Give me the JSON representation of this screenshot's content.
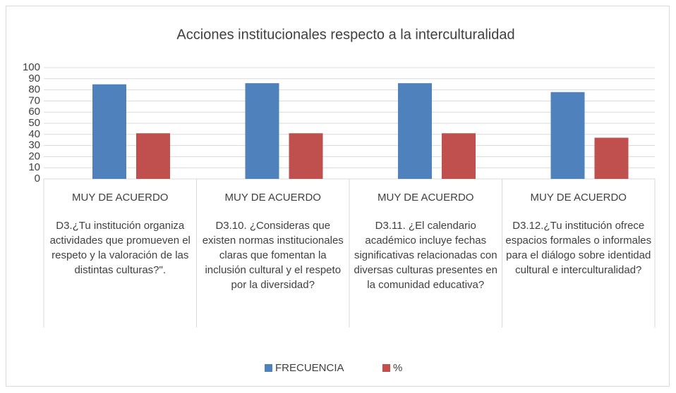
{
  "chart_data": {
    "type": "bar",
    "title": "Acciones institucionales respecto a la interculturalidad",
    "categories": [
      "MUY DE ACUERDO",
      "MUY DE ACUERDO",
      "MUY DE ACUERDO",
      "MUY DE ACUERDO"
    ],
    "category_groups": [
      "D3.¿Tu institución organiza actividades que promueven el respeto y la valoración de las distintas culturas?\".",
      "D3.10. ¿Consideras que existen normas institucionales claras que fomentan la inclusión cultural y el respeto por la diversidad?",
      "D3.11.  ¿El calendario académico incluye fechas significativas relacionadas con diversas culturas presentes en la comunidad educativa?",
      "D3.12.¿Tu institución ofrece espacios formales o informales para el diálogo sobre identidad cultural e interculturalidad?"
    ],
    "series": [
      {
        "name": "FRECUENCIA",
        "color": "#4f81bd",
        "values": [
          85,
          86,
          86,
          78
        ]
      },
      {
        "name": "%",
        "color": "#c0504d",
        "values": [
          41,
          41,
          41,
          37
        ]
      }
    ],
    "ylim": [
      0,
      100
    ],
    "yticks": [
      0,
      10,
      20,
      30,
      40,
      50,
      60,
      70,
      80,
      90,
      100
    ],
    "grid": true,
    "legend": "bottom"
  }
}
